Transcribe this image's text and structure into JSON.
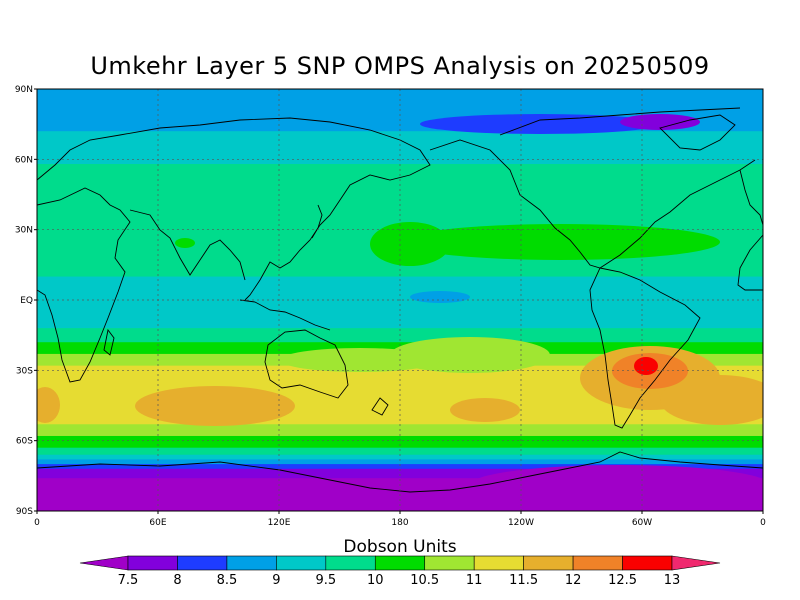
{
  "title": "Umkehr Layer 5 SNP OMPS Analysis on 20250509",
  "colorbar": {
    "title": "Dobson Units",
    "levels": [
      "7.5",
      "8",
      "8.5",
      "9",
      "9.5",
      "10",
      "10.5",
      "11",
      "11.5",
      "12",
      "12.5",
      "13"
    ],
    "colors": [
      "#a000c8",
      "#8200dc",
      "#1e3cff",
      "#00a0e6",
      "#00c8c8",
      "#00dc8c",
      "#00dc00",
      "#a0e632",
      "#e6dc32",
      "#e6af2d",
      "#f08228",
      "#fa0000",
      "#f0286e"
    ]
  },
  "lat_ticks": [
    "90N",
    "60N",
    "30N",
    "EQ",
    "30S",
    "60S",
    "90S"
  ],
  "lon_ticks": [
    "0",
    "60E",
    "120E",
    "180",
    "120W",
    "60W",
    "0"
  ],
  "bands": [
    {
      "lat": 90,
      "color": "#00a0e6"
    },
    {
      "lat": 72,
      "color": "#00c8c8"
    },
    {
      "lat": 58,
      "color": "#00dc8c"
    },
    {
      "lat": 10,
      "color": "#00c8c8"
    },
    {
      "lat": -12,
      "color": "#00dc8c"
    },
    {
      "lat": -18,
      "color": "#00dc00"
    },
    {
      "lat": -23,
      "color": "#a0e632"
    },
    {
      "lat": -28,
      "color": "#e6dc32"
    },
    {
      "lat": -53,
      "color": "#a0e632"
    },
    {
      "lat": -58,
      "color": "#00dc00"
    },
    {
      "lat": -63,
      "color": "#00dc8c"
    },
    {
      "lat": -66,
      "color": "#00c8c8"
    },
    {
      "lat": -68,
      "color": "#00a0e6"
    },
    {
      "lat": -70,
      "color": "#1e3cff"
    },
    {
      "lat": -72,
      "color": "#8200dc"
    },
    {
      "lat": -76,
      "color": "#a000c8"
    }
  ]
}
